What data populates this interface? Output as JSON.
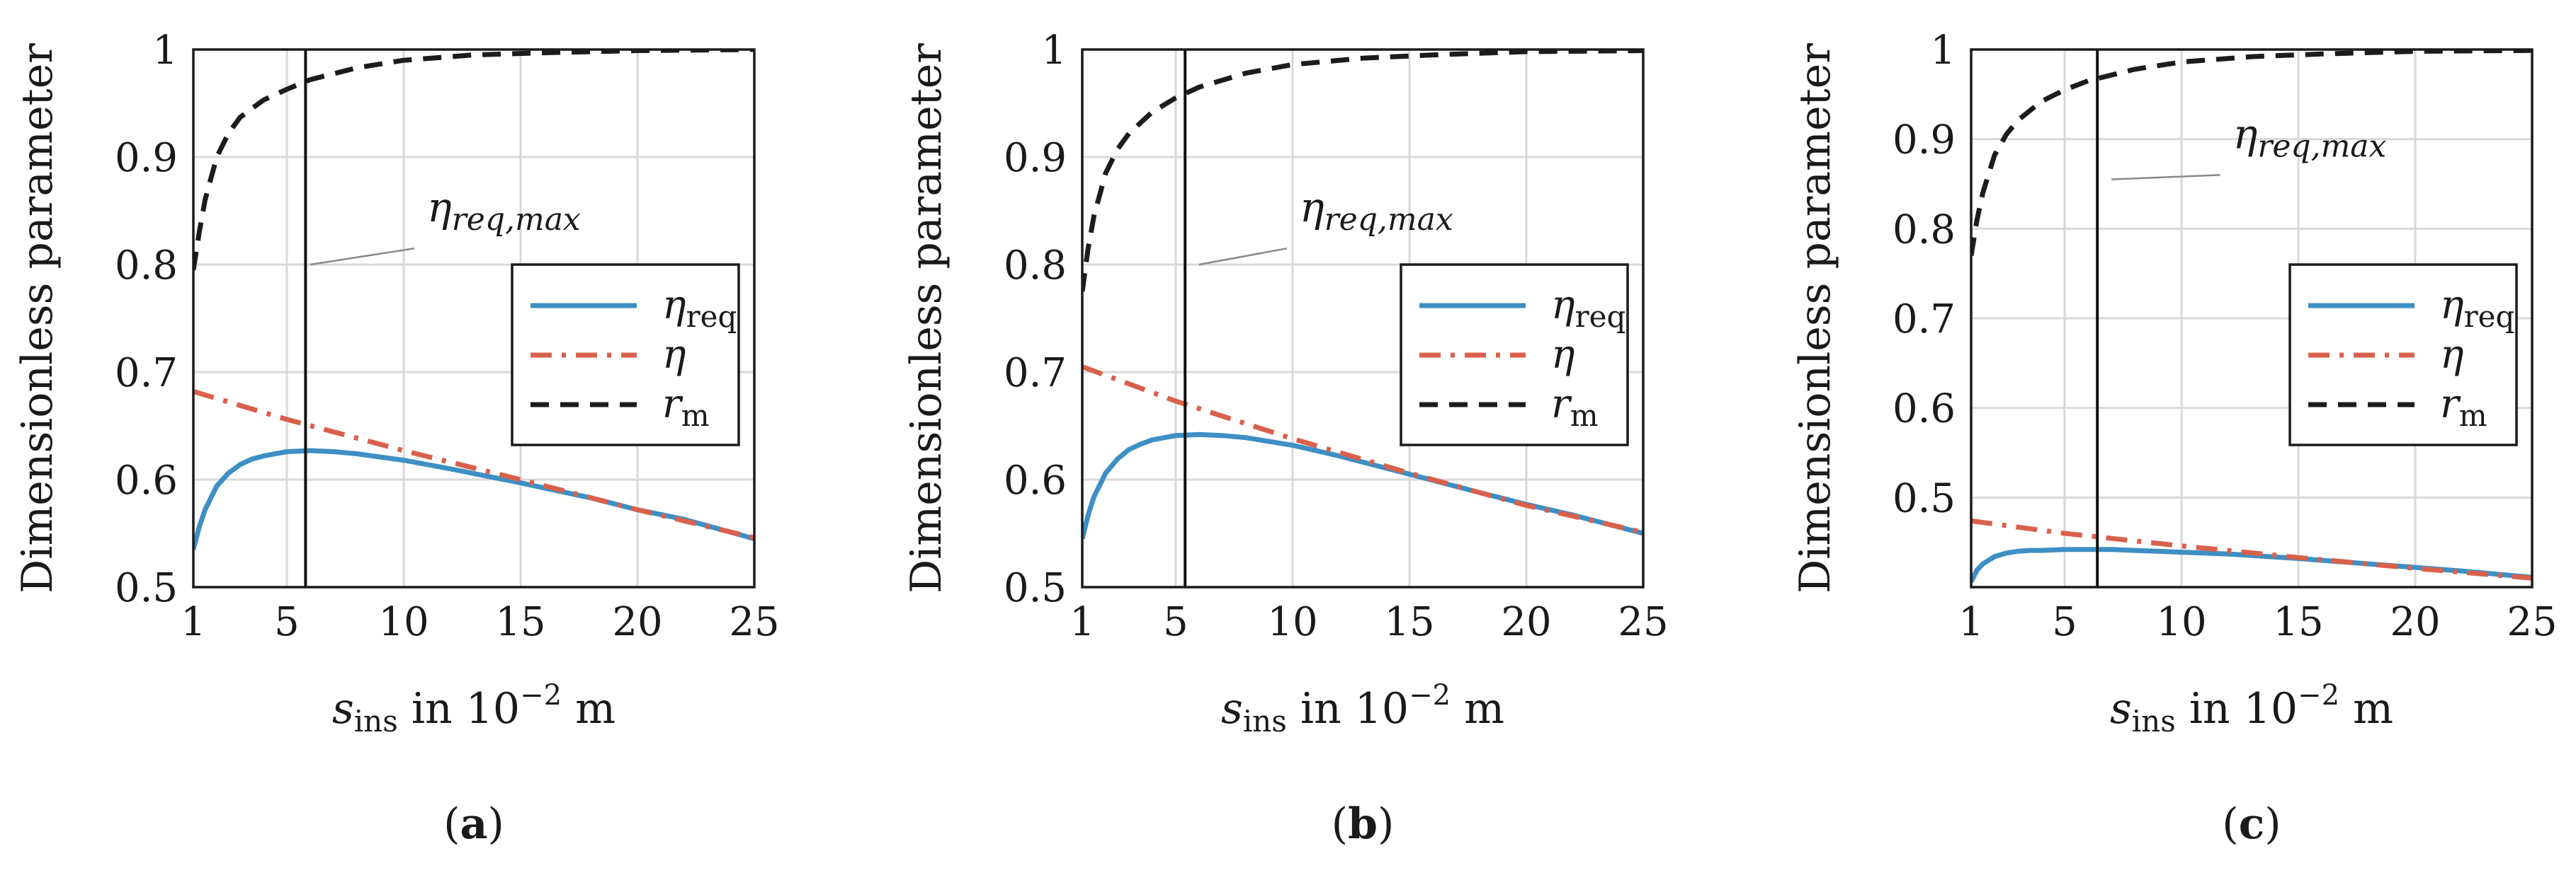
{
  "colors": {
    "eta_req": "#3d8fc4",
    "eta": "#d9614c",
    "r_m": "#1c1c1c",
    "marker": "#111111",
    "grid": "#d9d9d9",
    "annotation_leader": "#888888"
  },
  "shared": {
    "ylabel": "Dimensionless parameter",
    "xlabel_var": "s",
    "xlabel_sub": "ins",
    "xlabel_mid": " in 10",
    "xlabel_exp": "−2",
    "xlabel_unit": " m",
    "annotation_var": "η",
    "annotation_sub": "req,max",
    "legend": [
      {
        "key": "eta_req",
        "var": "η",
        "sub": "req",
        "style": "solid"
      },
      {
        "key": "eta",
        "var": "η",
        "sub": "",
        "style": "dashdot"
      },
      {
        "key": "r_m",
        "var": "r",
        "sub": "m",
        "style": "dashed"
      }
    ]
  },
  "chart_data": [
    {
      "type": "line",
      "panel_label": "(a)",
      "panel_letter": "a",
      "xlim": [
        1,
        25
      ],
      "ylim": [
        0.5,
        1.0
      ],
      "xticks": [
        1,
        5,
        10,
        15,
        20,
        25
      ],
      "yticks": [
        0.5,
        0.6,
        0.7,
        0.8,
        0.9,
        1.0
      ],
      "ytick_labels": [
        "0.5",
        "0.6",
        "0.7",
        "0.8",
        "0.9",
        "1"
      ],
      "grid": true,
      "legend_position": "center-right",
      "vline_x": 5.8,
      "annotation": {
        "x": 11,
        "y": 0.84,
        "leader_from": [
          6,
          0.8
        ]
      },
      "series": [
        {
          "name": "η_req",
          "key": "eta_req",
          "x": [
            1,
            1.25,
            1.5,
            2,
            2.5,
            3,
            3.5,
            4,
            5,
            6,
            7,
            8,
            10,
            12,
            15,
            18,
            20,
            22,
            25
          ],
          "y": [
            0.535,
            0.556,
            0.572,
            0.594,
            0.606,
            0.614,
            0.619,
            0.622,
            0.626,
            0.627,
            0.626,
            0.624,
            0.618,
            0.61,
            0.597,
            0.583,
            0.572,
            0.563,
            0.545
          ]
        },
        {
          "name": "η",
          "key": "eta",
          "x": [
            1,
            5,
            10,
            15,
            20,
            25
          ],
          "y": [
            0.682,
            0.656,
            0.627,
            0.6,
            0.572,
            0.546
          ]
        },
        {
          "name": "r_m",
          "key": "r_m",
          "x": [
            1,
            1.25,
            1.5,
            2,
            2.5,
            3,
            4,
            5,
            6,
            8,
            10,
            13,
            16,
            20,
            25
          ],
          "y": [
            0.795,
            0.83,
            0.86,
            0.9,
            0.922,
            0.937,
            0.953,
            0.963,
            0.972,
            0.983,
            0.99,
            0.995,
            0.997,
            0.999,
            1.0
          ]
        }
      ]
    },
    {
      "type": "line",
      "panel_label": "(b)",
      "panel_letter": "b",
      "xlim": [
        1,
        25
      ],
      "ylim": [
        0.5,
        1.0
      ],
      "xticks": [
        1,
        5,
        10,
        15,
        20,
        25
      ],
      "yticks": [
        0.5,
        0.6,
        0.7,
        0.8,
        0.9,
        1.0
      ],
      "ytick_labels": [
        "0.5",
        "0.6",
        "0.7",
        "0.8",
        "0.9",
        "1"
      ],
      "grid": true,
      "legend_position": "center-right",
      "vline_x": 5.4,
      "annotation": {
        "x": 10.3,
        "y": 0.84,
        "leader_from": [
          6,
          0.8
        ]
      },
      "series": [
        {
          "name": "η_req",
          "key": "eta_req",
          "x": [
            1,
            1.25,
            1.5,
            2,
            2.5,
            3,
            3.5,
            4,
            5,
            6,
            7,
            8,
            10,
            12,
            15,
            18,
            20,
            22,
            25
          ],
          "y": [
            0.545,
            0.567,
            0.584,
            0.606,
            0.619,
            0.628,
            0.633,
            0.637,
            0.641,
            0.642,
            0.641,
            0.639,
            0.632,
            0.622,
            0.605,
            0.588,
            0.577,
            0.567,
            0.55
          ]
        },
        {
          "name": "η",
          "key": "eta",
          "x": [
            1,
            5,
            10,
            15,
            20,
            25
          ],
          "y": [
            0.705,
            0.673,
            0.638,
            0.606,
            0.576,
            0.551
          ]
        },
        {
          "name": "r_m",
          "key": "r_m",
          "x": [
            1,
            1.25,
            1.5,
            2,
            2.5,
            3,
            4,
            5,
            6,
            8,
            10,
            13,
            16,
            20,
            25
          ],
          "y": [
            0.775,
            0.815,
            0.845,
            0.885,
            0.907,
            0.922,
            0.942,
            0.955,
            0.965,
            0.978,
            0.986,
            0.992,
            0.995,
            0.998,
            0.999
          ]
        }
      ]
    },
    {
      "type": "line",
      "panel_label": "(c)",
      "panel_letter": "c",
      "xlim": [
        1,
        25
      ],
      "ylim": [
        0.4,
        1.0
      ],
      "xticks": [
        1,
        5,
        10,
        15,
        20,
        25
      ],
      "yticks": [
        0.5,
        0.6,
        0.7,
        0.8,
        0.9,
        1.0
      ],
      "ytick_labels": [
        "0.5",
        "0.6",
        "0.7",
        "0.8",
        "0.9",
        "1"
      ],
      "grid": true,
      "legend_position": "center-right",
      "vline_x": 6.4,
      "annotation": {
        "x": 12.2,
        "y": 0.89,
        "leader_from": [
          7,
          0.855
        ]
      },
      "series": [
        {
          "name": "η_req",
          "key": "eta_req",
          "x": [
            1,
            1.25,
            1.5,
            2,
            2.5,
            3,
            3.5,
            4,
            5,
            6,
            7,
            8,
            10,
            12,
            15,
            18,
            20,
            22,
            25
          ],
          "y": [
            0.406,
            0.419,
            0.426,
            0.434,
            0.438,
            0.44,
            0.441,
            0.441,
            0.442,
            0.442,
            0.442,
            0.441,
            0.439,
            0.437,
            0.432,
            0.426,
            0.422,
            0.418,
            0.411
          ]
        },
        {
          "name": "η",
          "key": "eta",
          "x": [
            1,
            5,
            10,
            15,
            20,
            25
          ],
          "y": [
            0.474,
            0.46,
            0.446,
            0.433,
            0.421,
            0.41
          ]
        },
        {
          "name": "r_m",
          "key": "r_m",
          "x": [
            1,
            1.25,
            1.5,
            2,
            2.5,
            3,
            4,
            5,
            6,
            8,
            10,
            13,
            16,
            20,
            25
          ],
          "y": [
            0.77,
            0.81,
            0.84,
            0.882,
            0.905,
            0.921,
            0.942,
            0.955,
            0.965,
            0.978,
            0.986,
            0.992,
            0.995,
            0.998,
            0.999
          ]
        }
      ]
    }
  ]
}
